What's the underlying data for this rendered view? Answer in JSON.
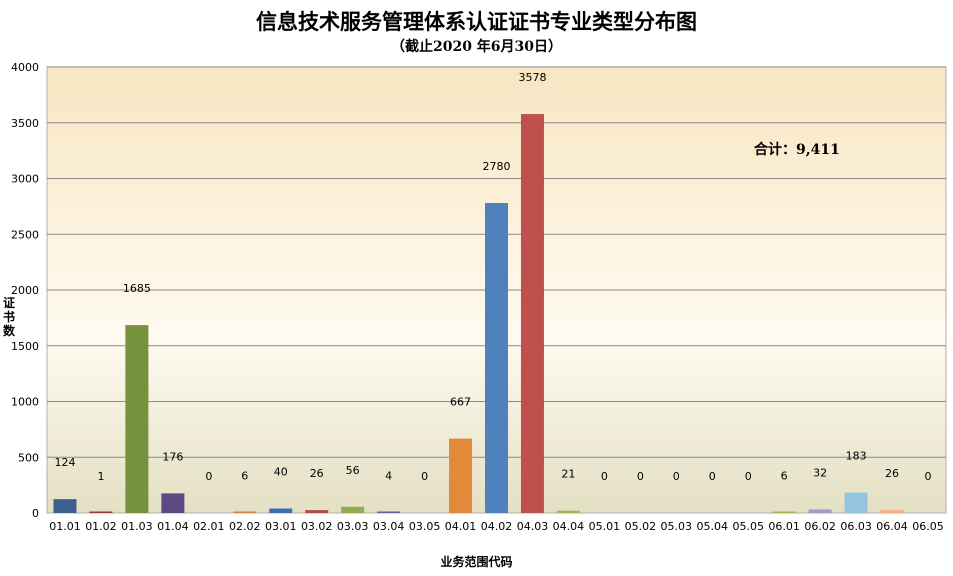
{
  "chart_data": {
    "type": "bar",
    "title": "信息技术服务管理体系认证证书专业类型分布图",
    "subtitle": "（截止2020 年6月30日）",
    "xlabel": "业务范围代码",
    "ylabel": "证书数",
    "ylim": [
      0,
      4000
    ],
    "yticks": [
      0,
      500,
      1000,
      1500,
      2000,
      2500,
      3000,
      3500,
      4000
    ],
    "grid": true,
    "annotation": "合计：9,411",
    "categories": [
      "01.01",
      "01.02",
      "01.03",
      "01.04",
      "02.01",
      "02.02",
      "03.01",
      "03.02",
      "03.03",
      "03.04",
      "03.05",
      "04.01",
      "04.02",
      "04.03",
      "04.04",
      "05.01",
      "05.02",
      "05.03",
      "05.04",
      "05.05",
      "06.01",
      "06.02",
      "06.03",
      "06.04",
      "06.05"
    ],
    "values": [
      124,
      1,
      1685,
      176,
      0,
      6,
      40,
      26,
      56,
      4,
      0,
      667,
      2780,
      3578,
      21,
      0,
      0,
      0,
      0,
      0,
      6,
      32,
      183,
      26,
      0
    ],
    "colors": [
      "#3b5f8f",
      "#9b3a36",
      "#76923c",
      "#5e4a82",
      "#2d8ba4",
      "#d8833c",
      "#3a6db2",
      "#b74a44",
      "#8fae54",
      "#6f5a96",
      "#3ba3c0",
      "#e2893a",
      "#4f81bd",
      "#c0504d",
      "#9bbb59",
      "#8064a2",
      "#4bacc6",
      "#f79646",
      "#4f81bd",
      "#c0504d",
      "#9bbb59",
      "#a69ac9",
      "#93c6dc",
      "#f4b183",
      "#4f81bd"
    ],
    "background_gradient": [
      "#f8e6c2",
      "#fffaf0",
      "#e4e0c4"
    ]
  }
}
